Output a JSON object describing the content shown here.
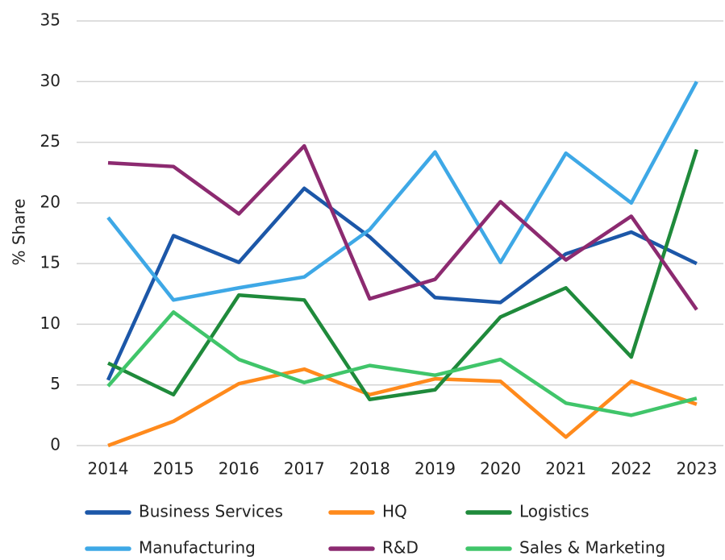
{
  "chart_data": {
    "type": "line",
    "y_label": "% Share",
    "categories": [
      "2014",
      "2015",
      "2016",
      "2017",
      "2018",
      "2019",
      "2020",
      "2021",
      "2022",
      "2023"
    ],
    "series": [
      {
        "name": "Business Services",
        "color": "#1c57a8",
        "values": [
          5.4,
          17.3,
          15.1,
          21.2,
          17.2,
          12.2,
          11.8,
          15.8,
          17.6,
          15.0
        ]
      },
      {
        "name": "HQ",
        "color": "#ff8a1c",
        "values": [
          0,
          2.0,
          5.1,
          6.3,
          4.2,
          5.5,
          5.3,
          0.7,
          5.3,
          3.4
        ]
      },
      {
        "name": "Logistics",
        "color": "#1f8a3b",
        "values": [
          6.8,
          4.2,
          12.4,
          12.0,
          3.8,
          4.6,
          10.6,
          13.0,
          7.3,
          24.4
        ]
      },
      {
        "name": "Manufacturing",
        "color": "#3ea8e6",
        "values": [
          18.8,
          12.0,
          13.0,
          13.9,
          17.8,
          24.2,
          15.1,
          24.1,
          20.0,
          30.0
        ]
      },
      {
        "name": "R&D",
        "color": "#8c2a70",
        "values": [
          23.3,
          23.0,
          19.1,
          24.7,
          12.1,
          13.7,
          20.1,
          15.3,
          18.9,
          11.2
        ]
      },
      {
        "name": "Sales & Marketing",
        "color": "#40c56a",
        "values": [
          4.9,
          11.0,
          7.1,
          5.2,
          6.6,
          5.8,
          7.1,
          3.5,
          2.5,
          3.9
        ]
      }
    ],
    "ylim": [
      0,
      35
    ],
    "yticks": [
      0,
      5,
      10,
      15,
      20,
      25,
      30,
      35
    ],
    "grid": true,
    "legend": "bottom"
  }
}
